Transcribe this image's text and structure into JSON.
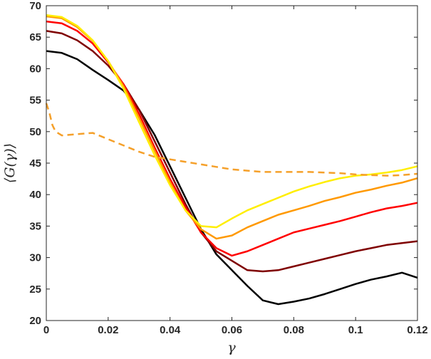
{
  "chart_data": {
    "type": "line",
    "title": "",
    "xlabel": "γ",
    "ylabel": "⟨G(γ)⟩",
    "xlim": [
      0,
      0.12
    ],
    "ylim": [
      20,
      70
    ],
    "grid": false,
    "legend": "none",
    "x_ticks": [
      0,
      0.02,
      0.04,
      0.06,
      0.08,
      0.1,
      0.12
    ],
    "x_tick_labels": [
      "0",
      "0.02",
      "0.04",
      "0.06",
      "0.08",
      "0.1",
      "0.12"
    ],
    "y_ticks": [
      20,
      25,
      30,
      35,
      40,
      45,
      50,
      55,
      60,
      65,
      70
    ],
    "y_tick_labels": [
      "20",
      "25",
      "30",
      "35",
      "40",
      "45",
      "50",
      "55",
      "60",
      "65",
      "70"
    ],
    "series": [
      {
        "color": "#000000",
        "style": "solid",
        "x": [
          0,
          0.005,
          0.01,
          0.015,
          0.02,
          0.025,
          0.03,
          0.035,
          0.04,
          0.045,
          0.05,
          0.055,
          0.06,
          0.065,
          0.07,
          0.075,
          0.08,
          0.085,
          0.09,
          0.095,
          0.1,
          0.105,
          0.11,
          0.115,
          0.12
        ],
        "y": [
          62.8,
          62.5,
          61.5,
          59.8,
          58.2,
          56.5,
          53.5,
          49.5,
          44.5,
          39.5,
          34.5,
          30.5,
          28.0,
          25.5,
          23.2,
          22.6,
          23.0,
          23.5,
          24.2,
          25.0,
          25.8,
          26.5,
          27.0,
          27.6,
          26.8
        ]
      },
      {
        "color": "#7f0000",
        "style": "solid",
        "x": [
          0,
          0.005,
          0.01,
          0.015,
          0.02,
          0.025,
          0.03,
          0.035,
          0.04,
          0.045,
          0.05,
          0.055,
          0.06,
          0.065,
          0.07,
          0.075,
          0.08,
          0.085,
          0.09,
          0.095,
          0.1,
          0.105,
          0.11,
          0.115,
          0.12
        ],
        "y": [
          66.0,
          65.6,
          64.5,
          62.8,
          60.5,
          57.5,
          53.5,
          48.5,
          43.5,
          38.5,
          34.0,
          31.0,
          29.5,
          28.0,
          27.8,
          28.0,
          28.6,
          29.2,
          29.8,
          30.4,
          31.0,
          31.5,
          32.0,
          32.3,
          32.6
        ]
      },
      {
        "color": "#ff0000",
        "style": "solid",
        "x": [
          0,
          0.005,
          0.01,
          0.015,
          0.02,
          0.025,
          0.03,
          0.035,
          0.04,
          0.045,
          0.05,
          0.055,
          0.06,
          0.065,
          0.07,
          0.075,
          0.08,
          0.085,
          0.09,
          0.095,
          0.1,
          0.105,
          0.11,
          0.115,
          0.12
        ],
        "y": [
          67.5,
          67.2,
          66.0,
          64.0,
          61.0,
          57.5,
          52.8,
          47.5,
          42.5,
          38.0,
          34.0,
          31.5,
          30.3,
          31.0,
          32.0,
          33.0,
          34.0,
          34.6,
          35.2,
          35.8,
          36.5,
          37.2,
          37.8,
          38.2,
          38.7
        ]
      },
      {
        "color": "#ff9900",
        "style": "solid",
        "x": [
          0,
          0.005,
          0.01,
          0.015,
          0.02,
          0.025,
          0.03,
          0.035,
          0.04,
          0.045,
          0.05,
          0.055,
          0.06,
          0.065,
          0.07,
          0.075,
          0.08,
          0.085,
          0.09,
          0.095,
          0.1,
          0.105,
          0.11,
          0.115,
          0.12
        ],
        "y": [
          68.3,
          68.0,
          66.6,
          64.4,
          61.2,
          57.2,
          52.2,
          47.0,
          42.0,
          37.5,
          34.5,
          33.0,
          33.5,
          34.8,
          35.8,
          36.8,
          37.5,
          38.2,
          39.0,
          39.6,
          40.3,
          40.8,
          41.4,
          41.9,
          42.6
        ]
      },
      {
        "color": "#ffee00",
        "style": "solid",
        "x": [
          0,
          0.005,
          0.01,
          0.015,
          0.02,
          0.025,
          0.03,
          0.035,
          0.04,
          0.045,
          0.05,
          0.055,
          0.06,
          0.065,
          0.07,
          0.075,
          0.08,
          0.085,
          0.09,
          0.095,
          0.1,
          0.105,
          0.11,
          0.115,
          0.12
        ],
        "y": [
          68.5,
          68.2,
          66.8,
          64.5,
          61.2,
          56.8,
          51.5,
          46.3,
          41.5,
          37.5,
          35.0,
          34.8,
          36.2,
          37.5,
          38.5,
          39.5,
          40.5,
          41.3,
          42.0,
          42.6,
          43.0,
          43.2,
          43.5,
          43.9,
          44.5
        ]
      },
      {
        "color": "#f5a02a",
        "style": "dashed",
        "x": [
          0,
          0.001,
          0.002,
          0.003,
          0.005,
          0.01,
          0.015,
          0.02,
          0.025,
          0.03,
          0.035,
          0.04,
          0.045,
          0.05,
          0.055,
          0.06,
          0.065,
          0.07,
          0.075,
          0.08,
          0.085,
          0.09,
          0.095,
          0.1,
          0.105,
          0.11,
          0.115,
          0.12
        ],
        "y": [
          54.5,
          53.0,
          51.0,
          50.0,
          49.4,
          49.6,
          49.8,
          48.8,
          47.8,
          46.8,
          46.0,
          45.6,
          45.2,
          44.8,
          44.4,
          44.0,
          43.8,
          43.6,
          43.6,
          43.6,
          43.6,
          43.5,
          43.4,
          43.2,
          43.1,
          43.0,
          43.1,
          43.3
        ]
      }
    ]
  }
}
